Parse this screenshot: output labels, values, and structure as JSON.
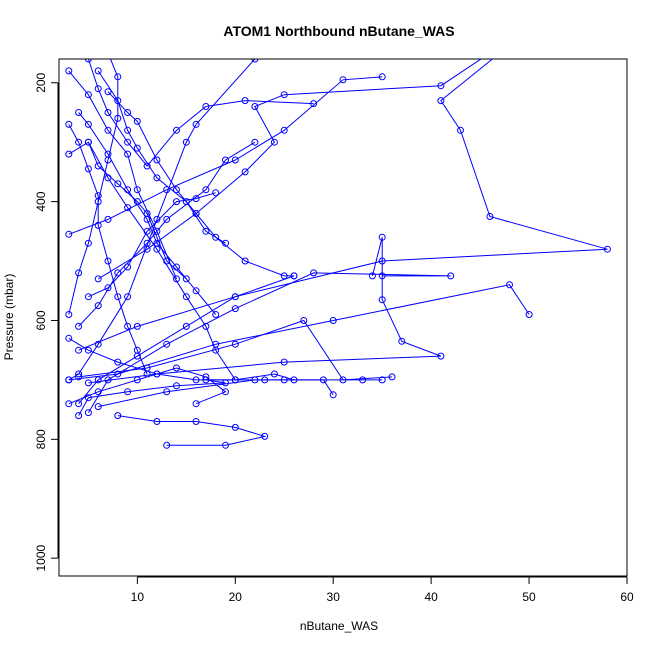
{
  "chart_data": {
    "type": "line",
    "title": "ATOM1 Northbound nButane_WAS",
    "xlabel": "nButane_WAS",
    "ylabel": "Pressure (mbar)",
    "xlim": [
      2,
      60
    ],
    "ylim": [
      1030,
      160
    ],
    "y_reversed": true,
    "x_ticks": [
      10,
      20,
      30,
      40,
      50,
      60
    ],
    "y_ticks": [
      200,
      400,
      600,
      800,
      1000
    ],
    "grid": false,
    "legend": "none",
    "color": "#0000ff",
    "marker": "open-circle",
    "series": [
      {
        "values": [
          [
            3,
            590
          ],
          [
            4,
            520
          ],
          [
            5,
            470
          ],
          [
            6,
            400
          ],
          [
            7,
            330
          ],
          [
            8,
            260
          ],
          [
            8,
            190
          ],
          [
            7,
            150
          ]
        ]
      },
      {
        "values": [
          [
            3,
            700
          ],
          [
            4,
            690
          ],
          [
            6,
            640
          ],
          [
            9,
            560
          ],
          [
            12,
            430
          ],
          [
            15,
            300
          ],
          [
            16,
            270
          ],
          [
            22,
            160
          ]
        ]
      },
      {
        "values": [
          [
            4,
            740
          ],
          [
            6,
            700
          ],
          [
            10,
            660
          ],
          [
            15,
            610
          ],
          [
            20,
            560
          ],
          [
            26,
            525
          ]
        ]
      },
      {
        "values": [
          [
            5,
            755
          ],
          [
            7,
            700
          ],
          [
            13,
            640
          ],
          [
            20,
            580
          ],
          [
            28,
            520
          ],
          [
            42,
            525
          ],
          [
            35,
            525
          ]
        ]
      },
      {
        "values": [
          [
            3,
            700
          ],
          [
            8,
            690
          ],
          [
            18,
            640
          ],
          [
            30,
            600
          ],
          [
            48,
            540
          ],
          [
            50,
            590
          ]
        ]
      },
      {
        "values": [
          [
            4,
            650
          ],
          [
            10,
            610
          ],
          [
            20,
            560
          ],
          [
            35,
            500
          ],
          [
            58,
            480
          ],
          [
            46,
            425
          ],
          [
            43,
            280
          ],
          [
            41,
            230
          ],
          [
            47,
            150
          ]
        ]
      },
      {
        "values": [
          [
            5,
            705
          ],
          [
            12,
            690
          ],
          [
            25,
            670
          ],
          [
            41,
            660
          ],
          [
            37,
            635
          ],
          [
            35,
            565
          ],
          [
            35,
            460
          ],
          [
            34,
            525
          ]
        ]
      },
      {
        "values": [
          [
            6,
            745
          ],
          [
            13,
            720
          ],
          [
            22,
            700
          ],
          [
            25,
            700
          ],
          [
            33,
            700
          ],
          [
            35,
            700
          ]
        ]
      },
      {
        "values": [
          [
            4,
            695
          ],
          [
            11,
            680
          ],
          [
            20,
            640
          ],
          [
            27,
            600
          ],
          [
            31,
            700
          ],
          [
            36,
            695
          ]
        ]
      },
      {
        "values": [
          [
            3,
            455
          ],
          [
            7,
            430
          ],
          [
            13,
            380
          ],
          [
            20,
            330
          ],
          [
            25,
            280
          ],
          [
            31,
            195
          ],
          [
            35,
            190
          ]
        ]
      },
      {
        "values": [
          [
            6,
            530
          ],
          [
            11,
            480
          ],
          [
            16,
            420
          ],
          [
            21,
            350
          ],
          [
            24,
            300
          ],
          [
            22,
            240
          ],
          [
            25,
            220
          ],
          [
            41,
            205
          ],
          [
            46,
            150
          ]
        ]
      },
      {
        "values": [
          [
            3,
            180
          ],
          [
            5,
            220
          ],
          [
            7,
            280
          ],
          [
            9,
            320
          ],
          [
            10,
            380
          ],
          [
            12,
            450
          ],
          [
            14,
            530
          ]
        ]
      },
      {
        "values": [
          [
            8,
            760
          ],
          [
            12,
            770
          ],
          [
            16,
            770
          ],
          [
            20,
            780
          ],
          [
            23,
            795
          ],
          [
            19,
            810
          ],
          [
            13,
            810
          ]
        ]
      },
      {
        "values": [
          [
            5,
            300
          ],
          [
            7,
            360
          ],
          [
            9,
            410
          ],
          [
            12,
            480
          ],
          [
            15,
            560
          ],
          [
            17,
            610
          ],
          [
            18,
            650
          ],
          [
            20,
            700
          ]
        ]
      },
      {
        "values": [
          [
            7,
            215
          ],
          [
            9,
            250
          ],
          [
            10,
            265
          ],
          [
            12,
            330
          ],
          [
            14,
            380
          ],
          [
            16,
            420
          ],
          [
            18,
            460
          ],
          [
            21,
            500
          ],
          [
            25,
            525
          ],
          [
            26,
            525
          ]
        ]
      },
      {
        "values": [
          [
            4,
            760
          ],
          [
            5,
            730
          ],
          [
            9,
            720
          ],
          [
            14,
            710
          ],
          [
            19,
            705
          ],
          [
            17,
            700
          ],
          [
            23,
            700
          ],
          [
            29,
            700
          ],
          [
            30,
            725
          ]
        ]
      },
      {
        "values": [
          [
            3,
            270
          ],
          [
            4,
            300
          ],
          [
            5,
            345
          ],
          [
            6,
            390
          ],
          [
            6,
            440
          ],
          [
            7,
            500
          ],
          [
            8,
            560
          ],
          [
            9,
            610
          ],
          [
            10,
            650
          ],
          [
            11,
            690
          ]
        ]
      },
      {
        "values": [
          [
            5,
            160
          ],
          [
            6,
            210
          ],
          [
            7,
            250
          ],
          [
            9,
            300
          ],
          [
            11,
            340
          ],
          [
            14,
            280
          ],
          [
            17,
            240
          ],
          [
            21,
            230
          ],
          [
            28,
            235
          ]
        ]
      },
      {
        "values": [
          [
            3,
            740
          ],
          [
            6,
            720
          ],
          [
            10,
            700
          ],
          [
            14,
            680
          ],
          [
            17,
            695
          ],
          [
            19,
            720
          ],
          [
            16,
            740
          ]
        ]
      },
      {
        "values": [
          [
            4,
            610
          ],
          [
            6,
            575
          ],
          [
            8,
            520
          ],
          [
            11,
            470
          ],
          [
            13,
            430
          ],
          [
            17,
            380
          ],
          [
            19,
            330
          ],
          [
            22,
            300
          ]
        ]
      },
      {
        "values": [
          [
            5,
            560
          ],
          [
            7,
            545
          ],
          [
            9,
            510
          ],
          [
            11,
            450
          ],
          [
            14,
            400
          ],
          [
            16,
            395
          ],
          [
            18,
            385
          ]
        ]
      },
      {
        "values": [
          [
            3,
            320
          ],
          [
            5,
            300
          ],
          [
            6,
            340
          ],
          [
            8,
            370
          ],
          [
            10,
            400
          ],
          [
            11,
            420
          ],
          [
            13,
            500
          ],
          [
            15,
            530
          ]
        ]
      },
      {
        "values": [
          [
            6,
            180
          ],
          [
            8,
            230
          ],
          [
            9,
            280
          ],
          [
            10,
            310
          ],
          [
            12,
            360
          ],
          [
            15,
            400
          ],
          [
            17,
            450
          ],
          [
            19,
            470
          ]
        ]
      },
      {
        "values": [
          [
            3,
            630
          ],
          [
            5,
            650
          ],
          [
            8,
            670
          ],
          [
            12,
            690
          ],
          [
            16,
            700
          ],
          [
            20,
            700
          ],
          [
            24,
            690
          ],
          [
            26,
            700
          ]
        ]
      },
      {
        "values": [
          [
            4,
            250
          ],
          [
            5,
            270
          ],
          [
            7,
            320
          ],
          [
            9,
            380
          ],
          [
            11,
            430
          ],
          [
            12,
            470
          ],
          [
            14,
            510
          ],
          [
            16,
            550
          ],
          [
            18,
            590
          ]
        ]
      }
    ]
  }
}
